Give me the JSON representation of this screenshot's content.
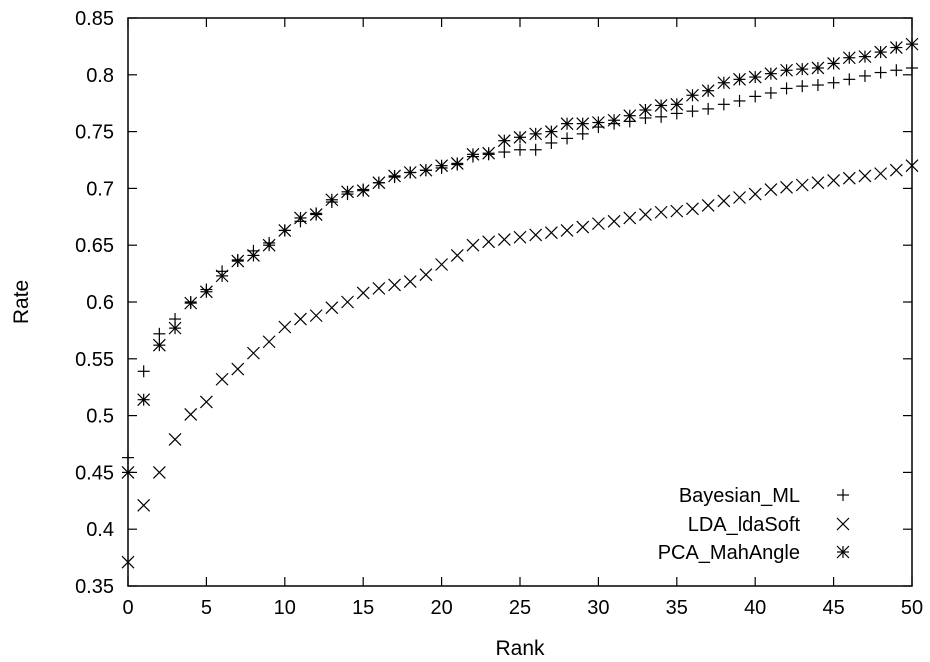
{
  "chart_data": {
    "type": "scatter",
    "xlabel": "Rank",
    "ylabel": "Rate",
    "xlim": [
      0,
      50
    ],
    "ylim": [
      0.35,
      0.85
    ],
    "xticks": [
      0,
      5,
      10,
      15,
      20,
      25,
      30,
      35,
      40,
      45,
      50
    ],
    "yticks": [
      0.35,
      0.4,
      0.45,
      0.5,
      0.55,
      0.6,
      0.65,
      0.7,
      0.75,
      0.8,
      0.85
    ],
    "ytick_labels": [
      "0.35",
      "0.4",
      "0.45",
      "0.5",
      "0.55",
      "0.6",
      "0.65",
      "0.7",
      "0.75",
      "0.8",
      "0.85"
    ],
    "grid": false,
    "legend_position": "bottom-right",
    "x": [
      0,
      1,
      2,
      3,
      4,
      5,
      6,
      7,
      8,
      9,
      10,
      11,
      12,
      13,
      14,
      15,
      16,
      17,
      18,
      19,
      20,
      21,
      22,
      23,
      24,
      25,
      26,
      27,
      28,
      29,
      30,
      31,
      32,
      33,
      34,
      35,
      36,
      37,
      38,
      39,
      40,
      41,
      42,
      43,
      44,
      45,
      46,
      47,
      48,
      49,
      50
    ],
    "series": [
      {
        "name": "Bayesian_ML",
        "marker": "plus",
        "values": [
          0.463,
          0.539,
          0.572,
          0.585,
          0.6,
          0.611,
          0.627,
          0.637,
          0.645,
          0.652,
          0.663,
          0.671,
          0.678,
          0.688,
          0.695,
          0.699,
          0.705,
          0.71,
          0.714,
          0.716,
          0.718,
          0.721,
          0.728,
          0.73,
          0.732,
          0.734,
          0.734,
          0.74,
          0.744,
          0.748,
          0.754,
          0.757,
          0.759,
          0.762,
          0.763,
          0.766,
          0.768,
          0.77,
          0.774,
          0.777,
          0.781,
          0.784,
          0.788,
          0.79,
          0.791,
          0.793,
          0.796,
          0.799,
          0.802,
          0.804,
          0.806
        ]
      },
      {
        "name": "LDA_ldaSoft",
        "marker": "cross",
        "values": [
          0.371,
          0.421,
          0.45,
          0.479,
          0.501,
          0.512,
          0.532,
          0.541,
          0.555,
          0.565,
          0.578,
          0.585,
          0.588,
          0.595,
          0.6,
          0.608,
          0.612,
          0.615,
          0.618,
          0.624,
          0.633,
          0.641,
          0.65,
          0.653,
          0.655,
          0.657,
          0.659,
          0.661,
          0.663,
          0.666,
          0.669,
          0.671,
          0.674,
          0.677,
          0.679,
          0.68,
          0.682,
          0.685,
          0.689,
          0.692,
          0.695,
          0.699,
          0.701,
          0.703,
          0.705,
          0.707,
          0.709,
          0.711,
          0.713,
          0.716,
          0.72
        ]
      },
      {
        "name": "PCA_MahAngle",
        "marker": "star",
        "values": [
          0.45,
          0.514,
          0.562,
          0.577,
          0.599,
          0.609,
          0.623,
          0.636,
          0.641,
          0.65,
          0.663,
          0.674,
          0.677,
          0.69,
          0.697,
          0.698,
          0.705,
          0.711,
          0.714,
          0.716,
          0.72,
          0.722,
          0.73,
          0.731,
          0.742,
          0.745,
          0.748,
          0.75,
          0.757,
          0.757,
          0.758,
          0.76,
          0.764,
          0.769,
          0.773,
          0.774,
          0.782,
          0.786,
          0.793,
          0.796,
          0.798,
          0.801,
          0.804,
          0.805,
          0.806,
          0.81,
          0.815,
          0.816,
          0.82,
          0.824,
          0.827
        ]
      }
    ]
  }
}
